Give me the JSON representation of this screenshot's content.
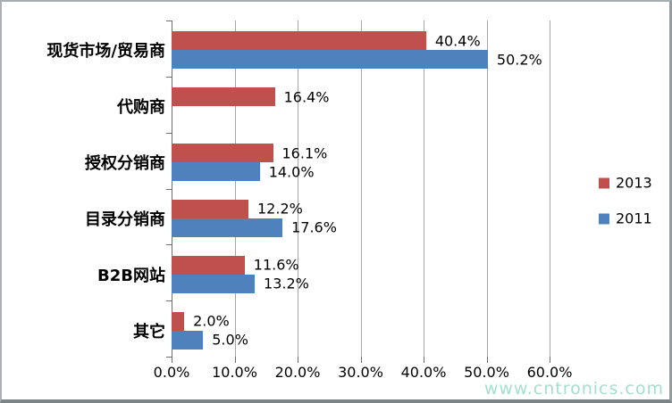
{
  "chart_data": {
    "type": "bar",
    "orientation": "horizontal",
    "title": "",
    "categories": [
      "现货市场/贸易商",
      "代购商",
      "授权分销商",
      "目录分销商",
      "B2B网站",
      "其它"
    ],
    "series": [
      {
        "name": "2013",
        "color": "#C0504D",
        "values": [
          40.4,
          16.4,
          16.1,
          12.2,
          11.6,
          2.0
        ],
        "labels": [
          "40.4%",
          "16.4%",
          "16.1%",
          "12.2%",
          "11.6%",
          "2.0%"
        ]
      },
      {
        "name": "2011",
        "color": "#4F81BD",
        "values": [
          50.2,
          null,
          14.0,
          17.6,
          13.2,
          5.0
        ],
        "labels": [
          "50.2%",
          null,
          "14.0%",
          "17.6%",
          "13.2%",
          "5.0%"
        ]
      }
    ],
    "x_axis": {
      "min": 0,
      "max": 60,
      "step": 10,
      "tick_labels": [
        "0.0%",
        "10.0%",
        "20.0%",
        "30.0%",
        "40.0%",
        "50.0%",
        "60.0%"
      ]
    },
    "legend": {
      "position": "right",
      "entries": [
        "2013",
        "2011"
      ]
    },
    "grid": "vertical",
    "colors": {
      "gridline": "#a6a6a6",
      "axis": "#6e6e6e",
      "text": "#000000"
    }
  },
  "watermark": {
    "text": "www.cntronics.com",
    "color": "#8fd6c4"
  }
}
